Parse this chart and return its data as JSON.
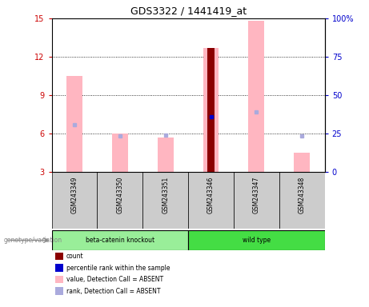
{
  "title": "GDS3322 / 1441419_at",
  "samples": [
    "GSM243349",
    "GSM243350",
    "GSM243351",
    "GSM243346",
    "GSM243347",
    "GSM243348"
  ],
  "ylim_left": [
    3,
    15
  ],
  "ylim_right": [
    0,
    100
  ],
  "yticks_left": [
    3,
    6,
    9,
    12,
    15
  ],
  "yticks_right": [
    0,
    25,
    50,
    75,
    100
  ],
  "ytick_labels_right": [
    "0",
    "25",
    "50",
    "75",
    "100%"
  ],
  "pink_bars_top": [
    10.5,
    6.0,
    5.7,
    12.7,
    14.8,
    4.5
  ],
  "red_bar_top": [
    null,
    null,
    null,
    12.7,
    null,
    null
  ],
  "blue_square": [
    null,
    null,
    null,
    7.3,
    null,
    null
  ],
  "blue_absent_square": [
    6.7,
    5.8,
    5.85,
    null,
    7.7,
    5.8
  ],
  "bar_bottom": 3,
  "bar_width": 0.35,
  "pink_color": "#FFB6C1",
  "red_color": "#8B0000",
  "blue_color": "#0000CD",
  "blue_absent_color": "#AAAADD",
  "axis_left_color": "#CC0000",
  "axis_right_color": "#0000CC",
  "sample_bg_color": "#CCCCCC",
  "group1_label": "beta-catenin knockout",
  "group2_label": "wild type",
  "group1_color": "#99EE99",
  "group2_color": "#44DD44",
  "legend_items": [
    {
      "label": "count",
      "color": "#8B0000"
    },
    {
      "label": "percentile rank within the sample",
      "color": "#0000CD"
    },
    {
      "label": "value, Detection Call = ABSENT",
      "color": "#FFB6C1"
    },
    {
      "label": "rank, Detection Call = ABSENT",
      "color": "#AAAADD"
    }
  ],
  "genotype_label": "genotype/variation"
}
